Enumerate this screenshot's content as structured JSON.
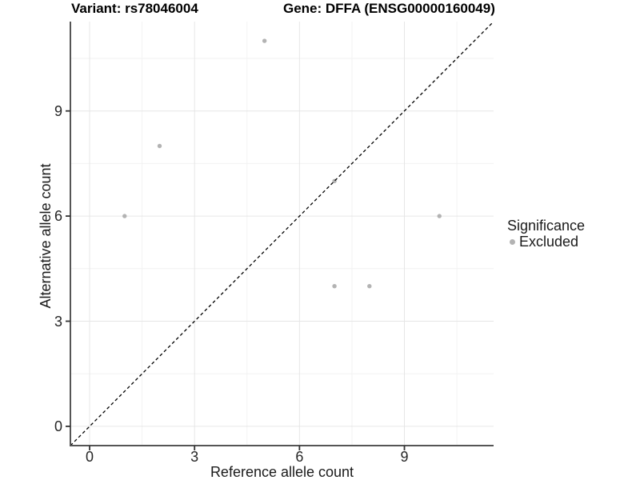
{
  "title": {
    "variant": "Variant: rs78046004",
    "gene": "Gene: DFFA (ENSG00000160049)"
  },
  "x_axis": {
    "label": "Reference allele count",
    "ticks": [
      "0",
      "3",
      "6",
      "9"
    ]
  },
  "y_axis": {
    "label": "Alternative allele count",
    "ticks": [
      "0",
      "3",
      "6",
      "9"
    ]
  },
  "legend": {
    "title": "Significance",
    "items": [
      {
        "label": "Excluded",
        "color": "#b3b3b3"
      }
    ]
  },
  "chart_data": {
    "type": "scatter",
    "title": "Variant: rs78046004  Gene: DFFA (ENSG00000160049)",
    "xlabel": "Reference allele count",
    "ylabel": "Alternative allele count",
    "series": [
      {
        "name": "Excluded",
        "color": "#b3b3b3",
        "points": [
          [
            1,
            6
          ],
          [
            2,
            8
          ],
          [
            5,
            11
          ],
          [
            7,
            4
          ],
          [
            7,
            7
          ],
          [
            8,
            4
          ],
          [
            10,
            6
          ]
        ]
      }
    ],
    "reference_line": {
      "type": "identity",
      "slope": 1,
      "intercept": 0,
      "style": "dashed",
      "color": "#000000"
    },
    "xlim": [
      -0.55,
      11.55
    ],
    "ylim": [
      -0.55,
      11.55
    ],
    "x_ticks": [
      0,
      3,
      6,
      9
    ],
    "y_ticks": [
      0,
      3,
      6,
      9
    ],
    "x_minor": [
      1.5,
      4.5,
      7.5,
      10.5
    ],
    "y_minor": [
      1.5,
      4.5,
      7.5,
      10.5
    ],
    "grid": true,
    "legend_position": "right",
    "colors": {
      "point": "#b3b3b3",
      "grid_major": "#e6e6e6",
      "grid_minor": "#f2f2f2",
      "axis": "#555555",
      "tick": "#333333",
      "text": "#1a1a1a",
      "background": "#ffffff"
    }
  }
}
